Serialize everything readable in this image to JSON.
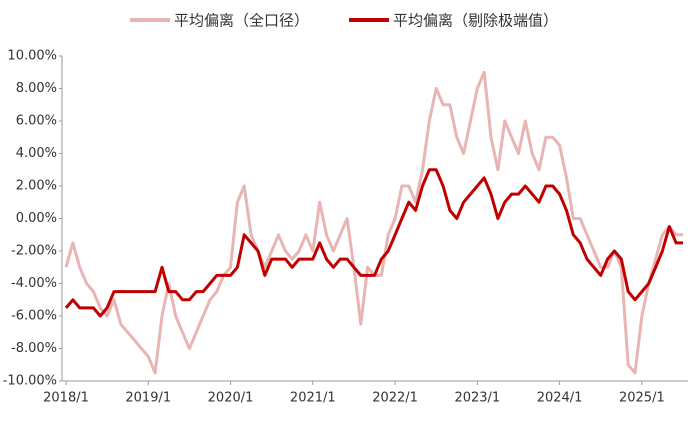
{
  "chart_data": {
    "type": "line",
    "categories": [
      "2018/1",
      null,
      null,
      null,
      null,
      null,
      null,
      null,
      null,
      null,
      null,
      null,
      "2019/1",
      null,
      null,
      null,
      null,
      null,
      null,
      null,
      null,
      null,
      null,
      null,
      "2020/1",
      null,
      null,
      null,
      null,
      null,
      null,
      null,
      null,
      null,
      null,
      null,
      "2021/1",
      null,
      null,
      null,
      null,
      null,
      null,
      null,
      null,
      null,
      null,
      null,
      "2022/1",
      null,
      null,
      null,
      null,
      null,
      null,
      null,
      null,
      null,
      null,
      null,
      "2023/1",
      null,
      null,
      null,
      null,
      null,
      null,
      null,
      null,
      null,
      null,
      null,
      "2024/1",
      null,
      null,
      null,
      null,
      null,
      null,
      null,
      null,
      null,
      null,
      null,
      "2025/1",
      null,
      null,
      null,
      null,
      null,
      null
    ],
    "series": [
      {
        "name": "平均偏离（全口径）",
        "color": "#e8b4b4",
        "width": 3,
        "values": [
          -3,
          -1.5,
          -3,
          -4,
          -4.5,
          -5.5,
          -6,
          -5,
          -6.5,
          -7,
          -7.5,
          -8,
          -8.5,
          -9.5,
          -6,
          -4,
          -6,
          -7,
          -8,
          -7,
          -6,
          -5,
          -4.5,
          -3.5,
          -3,
          1,
          2,
          -1,
          -2,
          -3,
          -2,
          -1,
          -2,
          -2.5,
          -2,
          -1,
          -2,
          1,
          -1,
          -2,
          -1,
          0,
          -3,
          -6.5,
          -3,
          -3.5,
          -3.5,
          -1,
          0,
          2,
          2,
          1,
          3,
          6,
          8,
          7,
          7,
          5,
          4,
          6,
          8,
          9,
          5,
          3,
          6,
          5,
          4,
          6,
          4,
          3,
          5,
          5,
          4.5,
          2.5,
          0,
          0,
          -1,
          -2,
          -3,
          -3,
          -2,
          -3,
          -9,
          -9.5,
          -6,
          -4,
          -2.5,
          -1,
          -0.5,
          -1,
          -1
        ]
      },
      {
        "name": "平均偏离（剔除极端值）",
        "color": "#c00000",
        "width": 3,
        "values": [
          -5.5,
          -5,
          -5.5,
          -5.5,
          -5.5,
          -6,
          -5.5,
          -4.5,
          -4.5,
          -4.5,
          -4.5,
          -4.5,
          -4.5,
          -4.5,
          -3,
          -4.5,
          -4.5,
          -5,
          -5,
          -4.5,
          -4.5,
          -4,
          -3.5,
          -3.5,
          -3.5,
          -3,
          -1,
          -1.5,
          -2,
          -3.5,
          -2.5,
          -2.5,
          -2.5,
          -3,
          -2.5,
          -2.5,
          -2.5,
          -1.5,
          -2.5,
          -3,
          -2.5,
          -2.5,
          -3,
          -3.5,
          -3.5,
          -3.5,
          -2.5,
          -2,
          -1,
          0,
          1,
          0.5,
          2,
          3,
          3,
          2,
          0.5,
          0,
          1,
          1.5,
          2,
          2.5,
          1.5,
          0,
          1,
          1.5,
          1.5,
          2,
          1.5,
          1,
          2,
          2,
          1.5,
          0.5,
          -1,
          -1.5,
          -2.5,
          -3,
          -3.5,
          -2.5,
          -2,
          -2.5,
          -4.5,
          -5,
          -4.5,
          -4,
          -3,
          -2,
          -0.5,
          -1.5,
          -1.5
        ]
      }
    ],
    "ylim": [
      -10,
      10
    ],
    "yticks": [
      {
        "value": -10,
        "label": "-10.00%"
      },
      {
        "value": -8,
        "label": "-8.00%"
      },
      {
        "value": -6,
        "label": "-6.00%"
      },
      {
        "value": -4,
        "label": "-4.00%"
      },
      {
        "value": -2,
        "label": "-2.00%"
      },
      {
        "value": 0,
        "label": "0.00%"
      },
      {
        "value": 2,
        "label": "2.00%"
      },
      {
        "value": 4,
        "label": "4.00%"
      },
      {
        "value": 6,
        "label": "6.00%"
      },
      {
        "value": 8,
        "label": "8.00%"
      },
      {
        "value": 10,
        "label": "10.00%"
      }
    ],
    "grid": false,
    "legend": "top"
  }
}
